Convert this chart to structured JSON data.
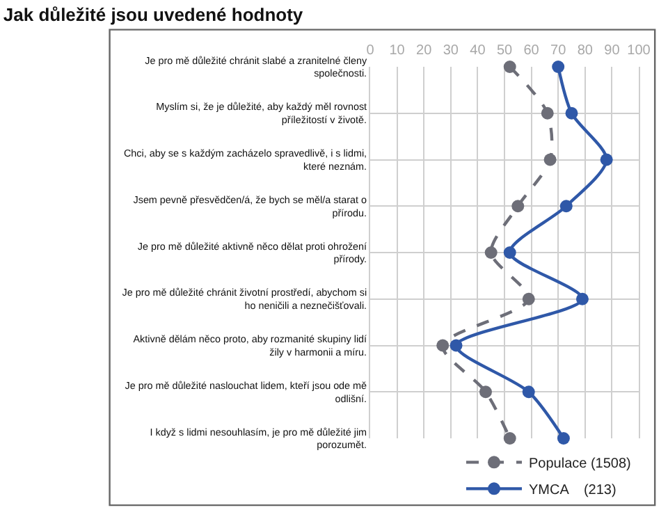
{
  "chart_data": {
    "type": "line",
    "title": "Jak důležité jsou uvedené hodnoty",
    "orientation": "horizontal",
    "categories": [
      "Je pro mě důležité chránit slabé a zranitelné členy společnosti.",
      "Myslím si, že je důležité, aby každý měl rovnost příležitostí v životě.",
      "Chci, aby se s každým zacházelo spravedlivě, i s lidmi, které neznám.",
      "Jsem pevně přesvědčen/á, že bych se měl/a starat o přírodu.",
      "Je pro mě důležité aktivně něco dělat proti ohrožení přírody.",
      "Je pro mě důležité chránit životní prostředí, abychom si ho neničili a neznečišťovali.",
      "Aktivně dělám něco proto, aby rozmanité skupiny lidí žily v harmonii a míru.",
      "Je pro mě důležité naslouchat lidem, kteří jsou ode mě odlišní.",
      "I když s lidmi nesouhlasím, je pro mě důležité jim porozumět."
    ],
    "series": [
      {
        "name": "Populace (1508)",
        "color": "#6d6e78",
        "line_style": "dashed",
        "values": [
          52,
          66,
          67,
          55,
          45,
          59,
          27,
          43,
          52
        ]
      },
      {
        "name": "YMCA    (213)",
        "color": "#2f58a8",
        "line_style": "solid",
        "values": [
          70,
          75,
          88,
          73,
          52,
          79,
          32,
          59,
          72
        ]
      }
    ],
    "xlim": [
      0,
      100
    ],
    "xticks": [
      0,
      10,
      20,
      30,
      40,
      50,
      60,
      70,
      80,
      90,
      100
    ],
    "grid": true,
    "legend": "bottom right",
    "marker": "circle"
  }
}
